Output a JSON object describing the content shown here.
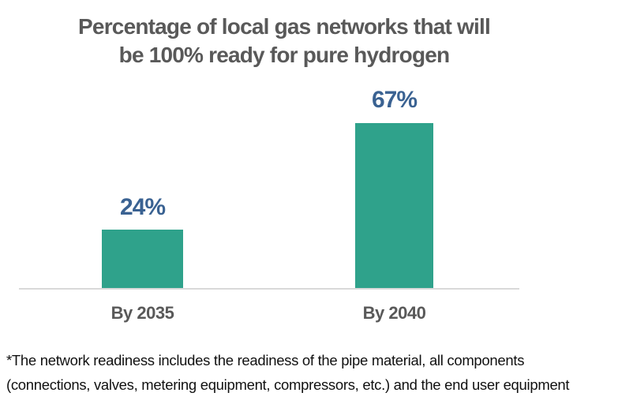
{
  "chart_data": {
    "type": "bar",
    "title": "Percentage of local gas networks that will be 100% ready for pure hydrogen",
    "title_lines": [
      "Percentage of local gas networks that will",
      "be 100% ready for pure hydrogen"
    ],
    "categories": [
      "By 2035",
      "By 2040"
    ],
    "values": [
      24,
      67
    ],
    "value_labels": [
      "24%",
      "67%"
    ],
    "ylim": [
      0,
      100
    ],
    "grid": false,
    "legend": false,
    "y_axis_visible": false,
    "bar_color": "#2FA28B",
    "value_label_color": "#3A6292",
    "category_label_color": "#595959",
    "title_color": "#595959",
    "axis_line_color": "#D9D9D9"
  },
  "footnote": {
    "text": "*The network readiness includes the readiness of the pipe material, all components (connections, valves, metering equipment, compressors, etc.) and the end user equipment",
    "lines": [
      "*The network readiness includes the readiness of the pipe material, all components",
      "(connections, valves, metering equipment, compressors, etc.) and the end user equipment"
    ],
    "color": "#111111"
  }
}
